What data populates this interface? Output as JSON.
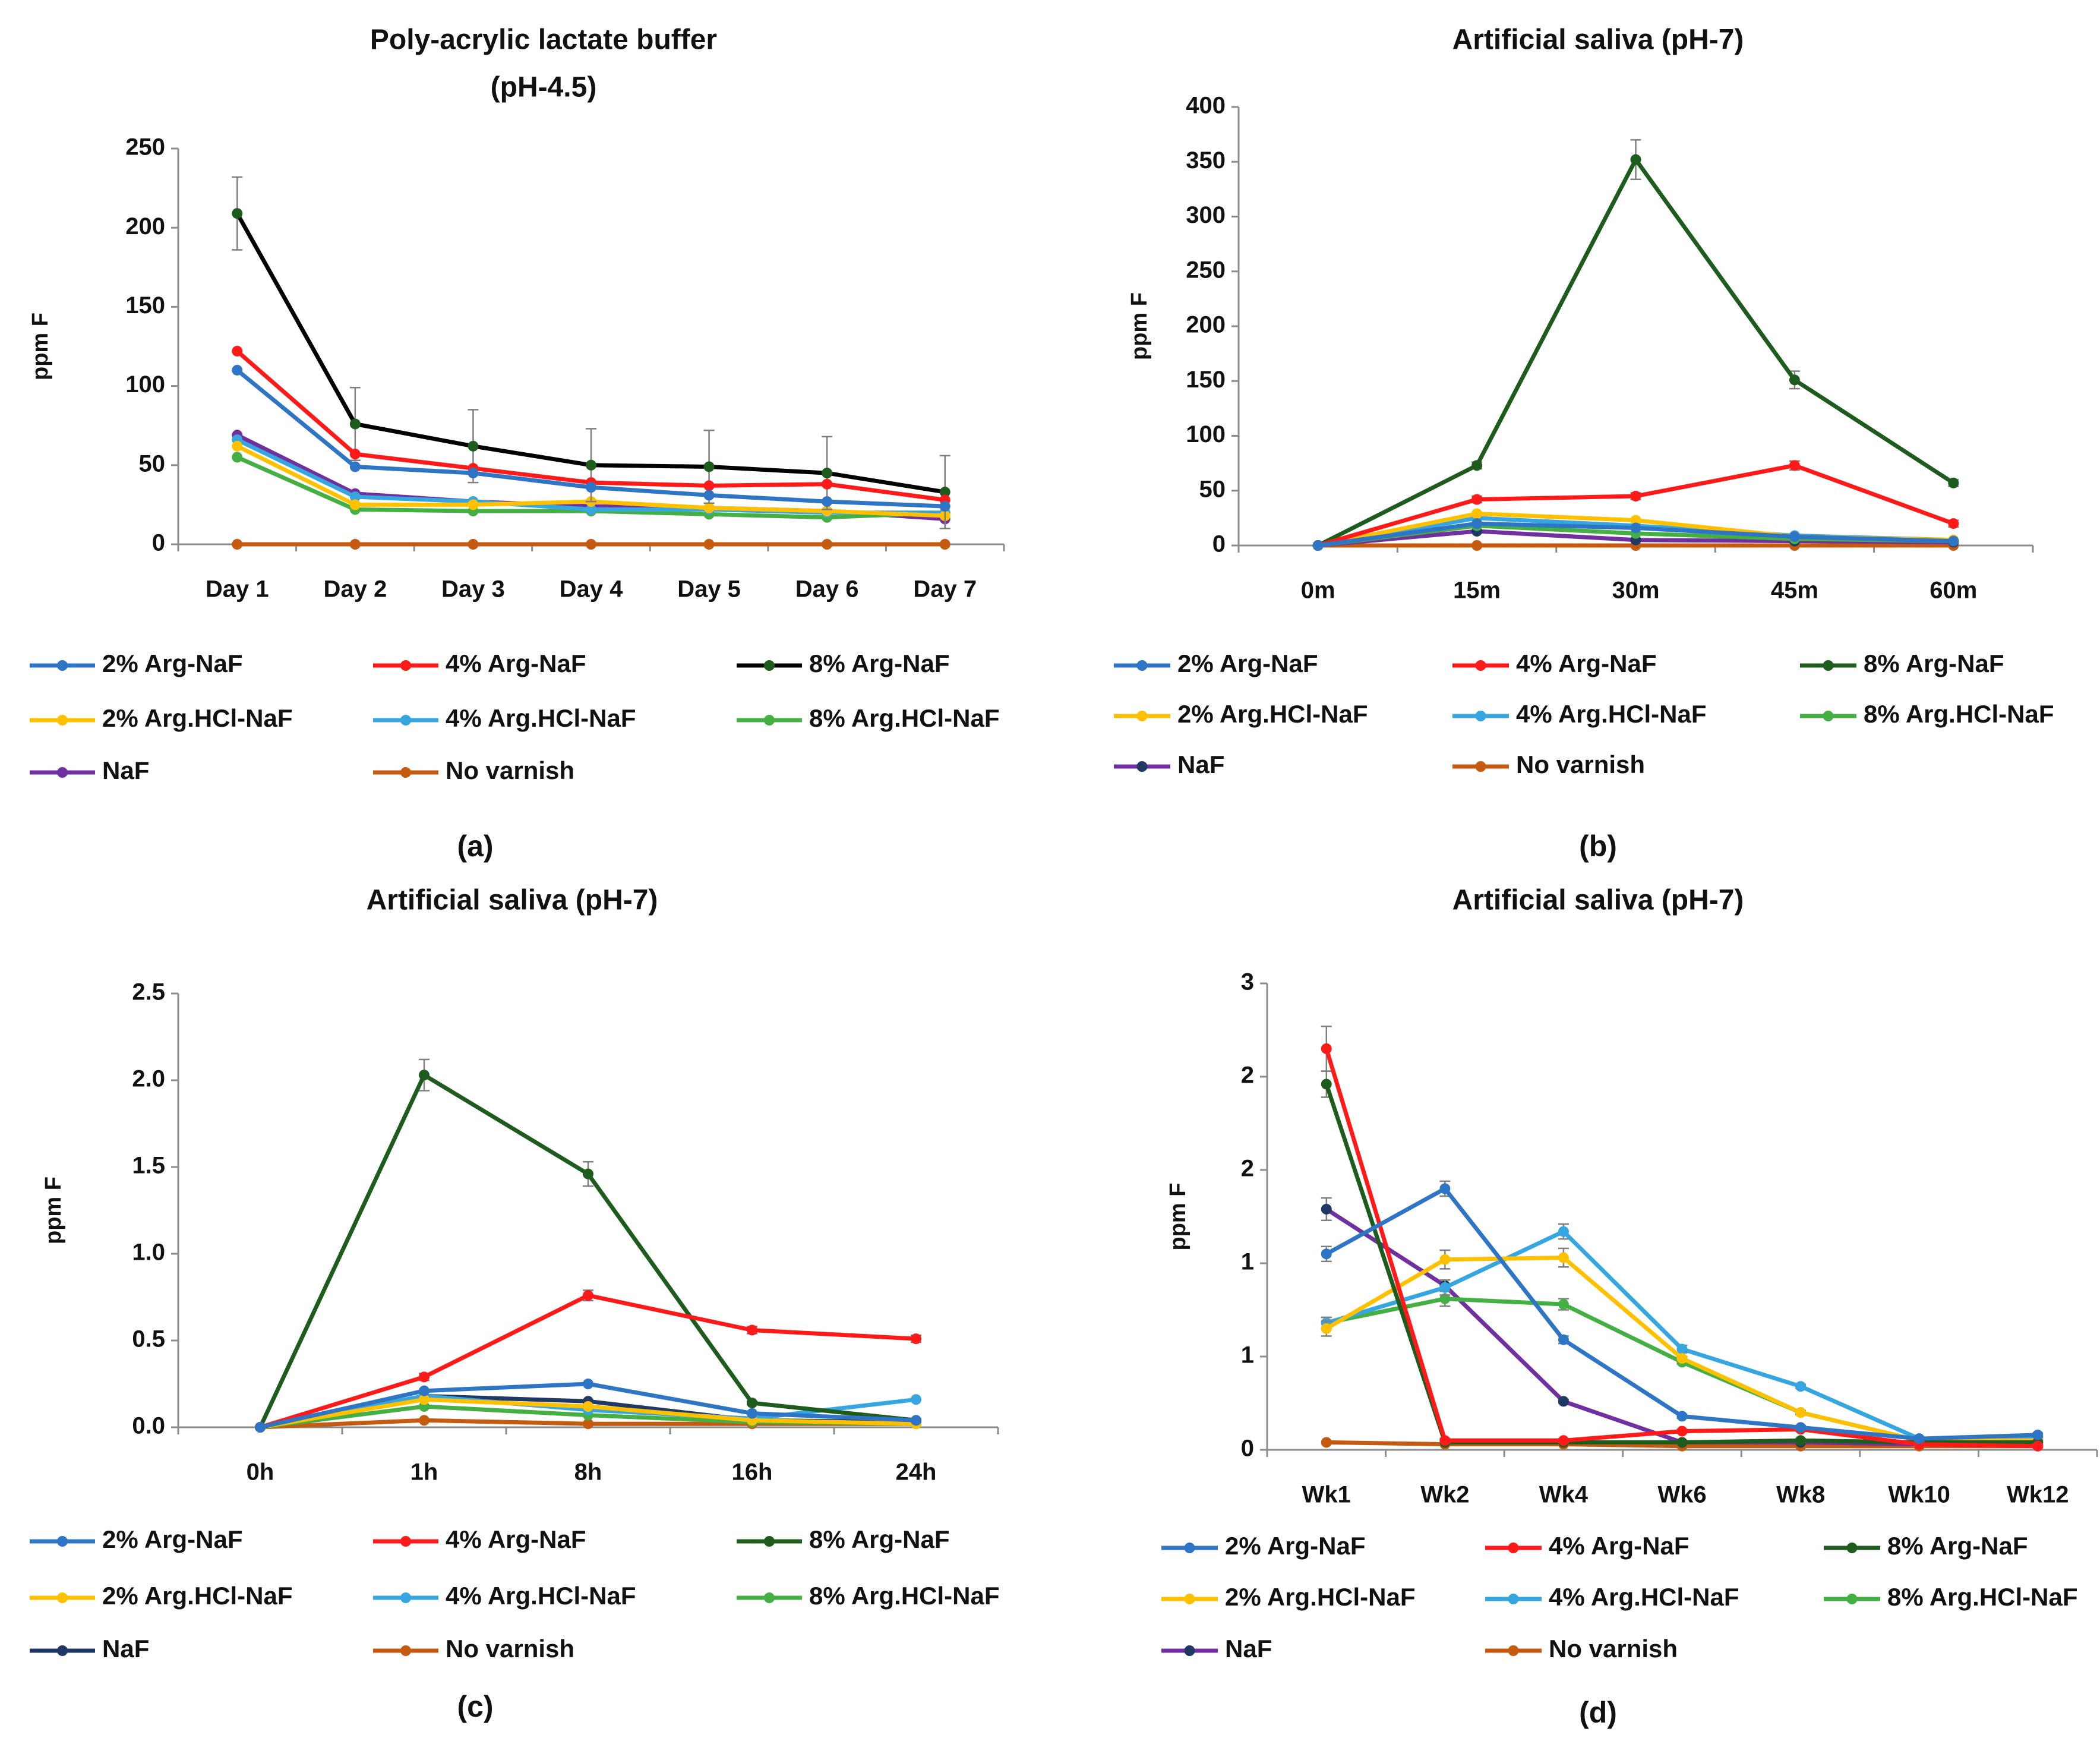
{
  "colors": {
    "arg2": "#2e75c6",
    "arg4": "#ff1a1a",
    "arg8": "#1e5c1e",
    "hcl2": "#ffc000",
    "hcl4": "#36a6e0",
    "hcl8": "#44b044",
    "naf_purple": "#7030a0",
    "naf_navy": "#1f3864",
    "none": "#c55a11",
    "gray": "#808080",
    "black": "#000000"
  },
  "chart_data": [
    {
      "panel": "(a)",
      "type": "line",
      "title": [
        "Poly-acrylic lactate buffer",
        "(pH-4.5)"
      ],
      "xlabel": "",
      "ylabel": "ppm F",
      "categories": [
        "Day 1",
        "Day 2",
        "Day 3",
        "Day 4",
        "Day 5",
        "Day 6",
        "Day 7"
      ],
      "ylim": [
        0,
        250
      ],
      "yticks": [
        "0",
        "50",
        "100",
        "150",
        "200",
        "250"
      ],
      "series": [
        {
          "name": "2% Arg-NaF",
          "color": "#2e75c6",
          "values": [
            110,
            49,
            45,
            36,
            31,
            27,
            24
          ]
        },
        {
          "name": "4% Arg-NaF",
          "color": "#ff1a1a",
          "values": [
            122,
            57,
            48,
            39,
            37,
            38,
            28
          ]
        },
        {
          "name": "8% Arg-NaF",
          "color": "#000000",
          "marker": "#1e5c1e",
          "values": [
            209,
            76,
            62,
            50,
            49,
            45,
            33
          ],
          "errors": [
            23,
            23,
            23,
            23,
            23,
            23,
            23
          ]
        },
        {
          "name": "2% Arg.HCl-NaF",
          "color": "#ffc000",
          "values": [
            62,
            25,
            25,
            27,
            23,
            21,
            18
          ]
        },
        {
          "name": "4% Arg.HCl-NaF",
          "color": "#36a6e0",
          "values": [
            66,
            30,
            27,
            22,
            22,
            20,
            20
          ]
        },
        {
          "name": "8% Arg.HCl-NaF",
          "color": "#44b044",
          "values": [
            55,
            22,
            21,
            21,
            19,
            17,
            20
          ]
        },
        {
          "name": "NaF",
          "color": "#7030a0",
          "values": [
            69,
            32,
            27,
            24,
            23,
            21,
            16
          ]
        },
        {
          "name": "No varnish",
          "color": "#c55a11",
          "values": [
            0,
            0,
            0,
            0,
            0,
            0,
            0
          ]
        }
      ],
      "legend": [
        {
          "name": "2% Arg-NaF",
          "color": "#2e75c6"
        },
        {
          "name": "4% Arg-NaF",
          "color": "#ff1a1a"
        },
        {
          "name": "8% Arg-NaF",
          "color": "#000000",
          "marker": "#1e5c1e"
        },
        {
          "name": "2% Arg.HCl-NaF",
          "color": "#ffc000"
        },
        {
          "name": "4% Arg.HCl-NaF",
          "color": "#36a6e0"
        },
        {
          "name": "8% Arg.HCl-NaF",
          "color": "#44b044"
        },
        {
          "name": "NaF",
          "color": "#7030a0"
        },
        {
          "name": "No varnish",
          "color": "#c55a11"
        }
      ]
    },
    {
      "panel": "(b)",
      "type": "line",
      "title": [
        "Artificial saliva (pH-7)"
      ],
      "xlabel": "",
      "ylabel": "ppm F",
      "categories": [
        "0m",
        "15m",
        "30m",
        "45m",
        "60m"
      ],
      "ylim": [
        0,
        400
      ],
      "yticks": [
        "0",
        "50",
        "100",
        "150",
        "200",
        "250",
        "300",
        "350",
        "400"
      ],
      "series": [
        {
          "name": "2% Arg-NaF",
          "color": "#2e75c6",
          "values": [
            0,
            20,
            16,
            8,
            4
          ]
        },
        {
          "name": "4% Arg-NaF",
          "color": "#ff1a1a",
          "values": [
            0,
            42,
            45,
            73,
            20
          ],
          "errors": [
            0,
            3,
            3,
            4,
            3
          ]
        },
        {
          "name": "8% Arg-NaF",
          "color": "#1e5c1e",
          "values": [
            0,
            73,
            352,
            151,
            57
          ],
          "errors": [
            0,
            3,
            18,
            8,
            3
          ]
        },
        {
          "name": "2% Arg.HCl-NaF",
          "color": "#ffc000",
          "values": [
            0,
            29,
            23,
            8,
            5
          ]
        },
        {
          "name": "4% Arg.HCl-NaF",
          "color": "#36a6e0",
          "values": [
            0,
            25,
            18,
            9,
            5
          ]
        },
        {
          "name": "8% Arg.HCl-NaF",
          "color": "#44b044",
          "values": [
            0,
            18,
            11,
            6,
            4
          ]
        },
        {
          "name": "NaF",
          "color": "#7030a0",
          "marker": "#1f3864",
          "values": [
            0,
            13,
            5,
            4,
            3
          ]
        },
        {
          "name": "No varnish",
          "color": "#c55a11",
          "values": [
            0,
            0,
            0,
            0,
            0
          ]
        }
      ],
      "legend": [
        {
          "name": "2% Arg-NaF",
          "color": "#2e75c6"
        },
        {
          "name": "4% Arg-NaF",
          "color": "#ff1a1a"
        },
        {
          "name": "8% Arg-NaF",
          "color": "#1e5c1e"
        },
        {
          "name": "2% Arg.HCl-NaF",
          "color": "#ffc000"
        },
        {
          "name": "4% Arg.HCl-NaF",
          "color": "#36a6e0"
        },
        {
          "name": "8% Arg.HCl-NaF",
          "color": "#44b044"
        },
        {
          "name": "NaF",
          "color": "#7030a0",
          "marker": "#1f3864"
        },
        {
          "name": "No varnish",
          "color": "#c55a11"
        }
      ]
    },
    {
      "panel": "(c)",
      "type": "line",
      "title": [
        "Artificial saliva (pH-7)"
      ],
      "xlabel": "",
      "ylabel": "ppm F",
      "categories": [
        "0h",
        "1h",
        "8h",
        "16h",
        "24h"
      ],
      "ylim": [
        0,
        2.5
      ],
      "yticks": [
        "0.0",
        "0.5",
        "1.0",
        "1.5",
        "2.0",
        "2.5"
      ],
      "series": [
        {
          "name": "2% Arg-NaF",
          "color": "#2e75c6",
          "values": [
            0,
            0.21,
            0.25,
            0.08,
            0.04
          ]
        },
        {
          "name": "4% Arg-NaF",
          "color": "#ff1a1a",
          "values": [
            0,
            0.29,
            0.76,
            0.56,
            0.51
          ],
          "errors": [
            0,
            0.02,
            0.03,
            0.02,
            0.02
          ]
        },
        {
          "name": "8% Arg-NaF",
          "color": "#1e5c1e",
          "values": [
            0,
            2.03,
            1.46,
            0.14,
            0.04
          ],
          "errors": [
            0,
            0.09,
            0.07,
            0.01,
            0.01
          ]
        },
        {
          "name": "2% Arg.HCl-NaF",
          "color": "#ffc000",
          "values": [
            0,
            0.16,
            0.12,
            0.04,
            0.02
          ]
        },
        {
          "name": "4% Arg.HCl-NaF",
          "color": "#36a6e0",
          "values": [
            0,
            0.18,
            0.1,
            0.05,
            0.16
          ]
        },
        {
          "name": "8% Arg.HCl-NaF",
          "color": "#44b044",
          "values": [
            0,
            0.12,
            0.07,
            0.03,
            0.02
          ]
        },
        {
          "name": "NaF",
          "color": "#1f3864",
          "values": [
            0,
            0.18,
            0.15,
            0.04,
            0.03
          ]
        },
        {
          "name": "No varnish",
          "color": "#c55a11",
          "values": [
            0,
            0.04,
            0.02,
            0.02,
            0.02
          ]
        }
      ],
      "legend": [
        {
          "name": "2% Arg-NaF",
          "color": "#2e75c6"
        },
        {
          "name": "4% Arg-NaF",
          "color": "#ff1a1a"
        },
        {
          "name": "8% Arg-NaF",
          "color": "#1e5c1e"
        },
        {
          "name": "2% Arg.HCl-NaF",
          "color": "#ffc000"
        },
        {
          "name": "4% Arg.HCl-NaF",
          "color": "#36a6e0"
        },
        {
          "name": "8% Arg.HCl-NaF",
          "color": "#44b044"
        },
        {
          "name": "NaF",
          "color": "#1f3864"
        },
        {
          "name": "No varnish",
          "color": "#c55a11"
        }
      ]
    },
    {
      "panel": "(d)",
      "type": "line",
      "title": [
        "Artificial saliva (pH-7)"
      ],
      "xlabel": "",
      "ylabel": "ppm F",
      "categories": [
        "Wk1",
        "Wk2",
        "Wk4",
        "Wk6",
        "Wk8",
        "Wk10",
        "Wk12"
      ],
      "ylim": [
        0,
        2.5
      ],
      "yticks": [
        "0",
        "1",
        "1",
        "2",
        "2",
        "3"
      ],
      "series": [
        {
          "name": "2% Arg-NaF",
          "color": "#2e75c6",
          "values": [
            1.05,
            1.4,
            0.59,
            0.18,
            0.12,
            0.06,
            0.08
          ],
          "errors": [
            0.04,
            0.04,
            0.02,
            0.01,
            0.01,
            0.01,
            0.01
          ]
        },
        {
          "name": "4% Arg-NaF",
          "color": "#ff1a1a",
          "values": [
            2.15,
            0.05,
            0.05,
            0.1,
            0.11,
            0.03,
            0.02
          ],
          "errors": [
            0.12,
            0.01,
            0.01,
            0.01,
            0.01,
            0.01,
            0.01
          ]
        },
        {
          "name": "8% Arg-NaF",
          "color": "#1e5c1e",
          "values": [
            1.96,
            0.04,
            0.04,
            0.04,
            0.05,
            0.04,
            0.04
          ],
          "errors": [
            0.07,
            0.01,
            0.01,
            0.01,
            0.01,
            0.01,
            0.01
          ]
        },
        {
          "name": "2% Arg.HCl-NaF",
          "color": "#ffc000",
          "values": [
            0.65,
            1.02,
            1.03,
            0.49,
            0.2,
            0.05,
            0.05
          ],
          "errors": [
            0.04,
            0.05,
            0.05,
            0.01,
            0.01,
            0.01,
            0.01
          ]
        },
        {
          "name": "4% Arg.HCl-NaF",
          "color": "#36a6e0",
          "values": [
            0.68,
            0.87,
            1.17,
            0.54,
            0.34,
            0.06,
            0.06
          ],
          "errors": [
            0.03,
            0.04,
            0.04,
            0.02,
            0.01,
            0.01,
            0.01
          ]
        },
        {
          "name": "8% Arg.HCl-NaF",
          "color": "#44b044",
          "values": [
            0.68,
            0.81,
            0.78,
            0.47,
            0.2,
            0.05,
            0.05
          ],
          "errors": [
            0.03,
            0.04,
            0.03,
            0.01,
            0.01,
            0.01,
            0.01
          ]
        },
        {
          "name": "NaF",
          "color": "#7030a0",
          "marker": "#1f3864",
          "values": [
            1.29,
            0.88,
            0.26,
            0.04,
            0.04,
            0.03,
            0.03
          ],
          "errors": [
            0.06,
            0.03,
            0.01,
            0.01,
            0.01,
            0.01,
            0.01
          ]
        },
        {
          "name": "No varnish",
          "color": "#c55a11",
          "values": [
            0.04,
            0.03,
            0.03,
            0.02,
            0.02,
            0.02,
            0.02
          ]
        }
      ],
      "legend": [
        {
          "name": "2% Arg-NaF",
          "color": "#2e75c6"
        },
        {
          "name": "4% Arg-NaF",
          "color": "#ff1a1a"
        },
        {
          "name": "8% Arg-NaF",
          "color": "#1e5c1e"
        },
        {
          "name": "2% Arg.HCl-NaF",
          "color": "#ffc000"
        },
        {
          "name": "4% Arg.HCl-NaF",
          "color": "#36a6e0"
        },
        {
          "name": "8% Arg.HCl-NaF",
          "color": "#44b044"
        },
        {
          "name": "NaF",
          "color": "#7030a0",
          "marker": "#1f3864"
        },
        {
          "name": "No varnish",
          "color": "#c55a11"
        }
      ]
    }
  ]
}
